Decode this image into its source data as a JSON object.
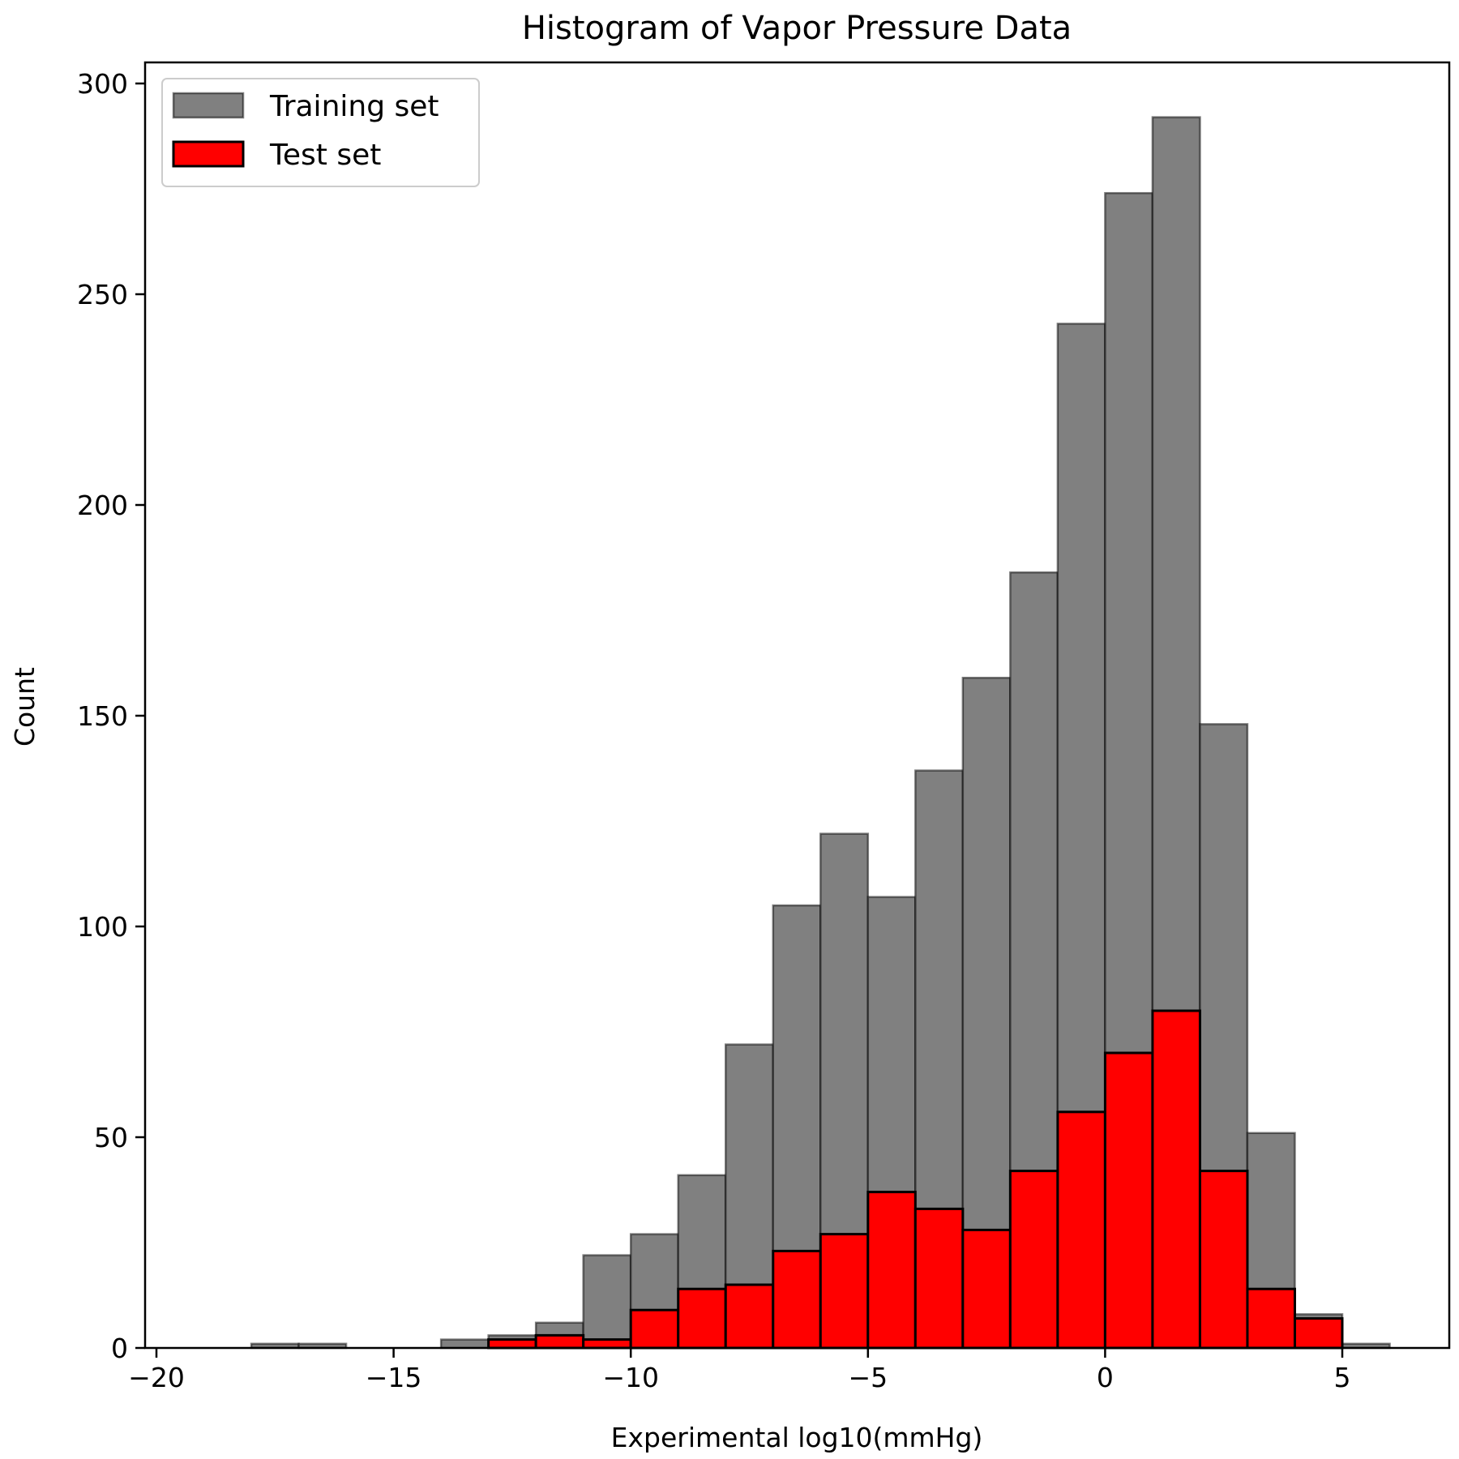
{
  "chart_data": {
    "type": "bar",
    "title": "Histogram of Vapor Pressure Data",
    "xlabel": "Experimental log10(mmHg)",
    "ylabel": "Count",
    "xlim": [
      -20.5,
      7.0
    ],
    "ylim": [
      0,
      306
    ],
    "x_ticks": [
      -20,
      -15,
      -10,
      -5,
      0,
      5
    ],
    "x_tick_labels": [
      "−20",
      "−15",
      "−10",
      "−5",
      "0",
      "5"
    ],
    "y_ticks": [
      0,
      50,
      100,
      150,
      200,
      250,
      300
    ],
    "y_tick_labels": [
      "0",
      "50",
      "100",
      "150",
      "200",
      "250",
      "300"
    ],
    "grid": false,
    "legend_position": "upper left",
    "bin_width": 1,
    "bin_edges": [
      -19,
      -18,
      -17,
      -16,
      -15,
      -14,
      -13,
      -12,
      -11,
      -10,
      -9,
      -8,
      -7,
      -6,
      -5,
      -4,
      -3,
      -2,
      -1,
      0,
      1,
      2,
      3,
      4,
      5,
      6
    ],
    "series": [
      {
        "name": "Training set",
        "color": "#808080",
        "edgecolor": "#000000",
        "alpha": 0.5,
        "values": [
          0,
          1,
          1,
          0,
          0,
          2,
          3,
          6,
          22,
          27,
          41,
          72,
          105,
          122,
          107,
          137,
          159,
          184,
          243,
          274,
          292,
          148,
          51,
          8,
          1
        ]
      },
      {
        "name": "Test set",
        "color": "#ff0000",
        "edgecolor": "#000000",
        "alpha": 1.0,
        "values": [
          0,
          0,
          0,
          0,
          0,
          0,
          2,
          3,
          2,
          9,
          14,
          15,
          23,
          27,
          37,
          33,
          28,
          42,
          56,
          70,
          80,
          42,
          14,
          7,
          0
        ]
      }
    ]
  }
}
